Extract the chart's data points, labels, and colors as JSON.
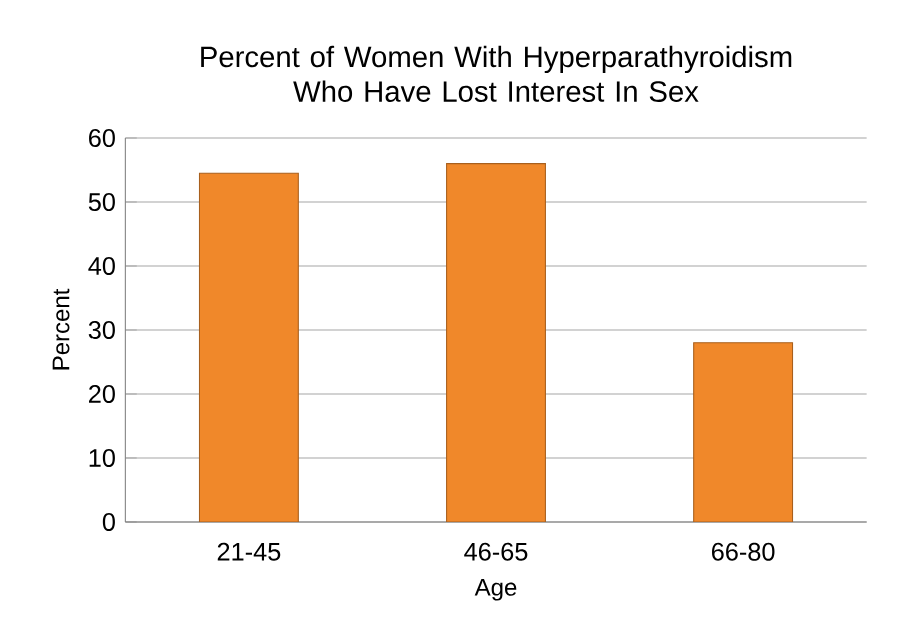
{
  "chart_data": {
    "type": "bar",
    "title": "Percent of Women With Hyperparathyroidism Who Have Lost Interest In Sex",
    "xlabel": "Age",
    "ylabel": "Percent",
    "categories": [
      "21-45",
      "46-65",
      "66-80"
    ],
    "values": [
      54.5,
      56,
      28
    ],
    "color": "#f0882a",
    "ylim": [
      0,
      60
    ],
    "yticks": [
      0,
      10,
      20,
      30,
      40,
      50,
      60
    ],
    "grid": "y"
  }
}
